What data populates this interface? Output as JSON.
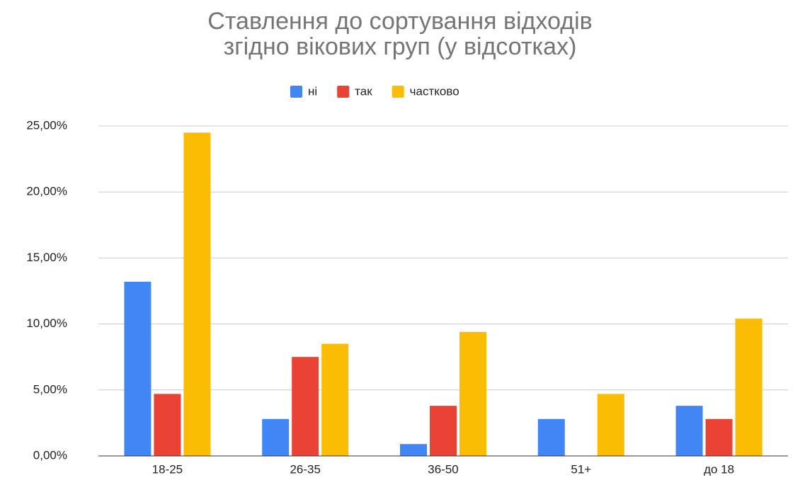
{
  "chart_data": {
    "type": "bar",
    "title": "Ставлення до сортування відходів згідно вікових груп (у відсотках)",
    "categories": [
      "18-25",
      "26-35",
      "36-50",
      "51+",
      "до 18"
    ],
    "series": [
      {
        "name": "ні",
        "color": "#4285f4",
        "values": [
          13.2,
          2.8,
          0.9,
          2.8,
          3.8
        ]
      },
      {
        "name": "так",
        "color": "#ea4335",
        "values": [
          4.7,
          7.5,
          3.8,
          0,
          2.8
        ]
      },
      {
        "name": "частково",
        "color": "#fbbc04",
        "values": [
          24.5,
          8.5,
          9.4,
          4.7,
          10.4
        ]
      }
    ],
    "ylim": [
      0,
      25
    ],
    "yticks": [
      {
        "value": 0,
        "label": "0,00%"
      },
      {
        "value": 5,
        "label": "5,00%"
      },
      {
        "value": 10,
        "label": "10,00%"
      },
      {
        "value": 15,
        "label": "15,00%"
      },
      {
        "value": 20,
        "label": "20,00%"
      },
      {
        "value": 25,
        "label": "25,00%"
      }
    ],
    "grid": true,
    "legend": "top"
  }
}
